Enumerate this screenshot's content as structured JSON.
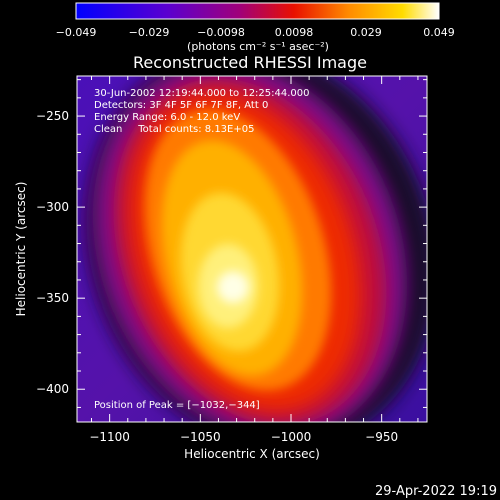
{
  "colorbar": {
    "tick_labels": [
      "−0.049",
      "−0.029",
      "−0.0098",
      "0.0098",
      "0.029",
      "0.049"
    ],
    "unit_label": "(photons cm⁻² s⁻¹ asec⁻²)",
    "range": [
      -0.049,
      0.049
    ]
  },
  "chart_data": {
    "type": "heatmap",
    "title": "Reconstructed RHESSI Image",
    "xlabel": "Heliocentric X (arcsec)",
    "ylabel": "Heliocentric Y (arcsec)",
    "xlim": [
      -1118,
      -925
    ],
    "ylim": [
      -418,
      -228
    ],
    "x_ticks": [
      -1100,
      -1050,
      -1000,
      -950
    ],
    "y_ticks": [
      -400,
      -350,
      -300,
      -250
    ],
    "x_tick_labels": [
      "−1100",
      "−1050",
      "−1000",
      "−950"
    ],
    "y_tick_labels": [
      "−400",
      "−350",
      "−300",
      "−250"
    ],
    "peak": {
      "x": -1032,
      "y": -344
    },
    "annotations": [
      "30-Jun-2002 12:19:44.000 to 12:25:44.000",
      "Detectors: 3F 4F 5F 6F 7F 8F, Att 0",
      "Energy Range: 6.0 - 12.0 keV",
      "Clean     Total counts: 8.13E+05"
    ],
    "peak_label": "Position of Peak = [−1032,−344]",
    "colormap_stops": [
      "#1f00ff",
      "#6a00c8",
      "#a0006e",
      "#e0140a",
      "#ff7800",
      "#ffc800",
      "#fffbd8"
    ]
  },
  "footer_date": "29-Apr-2022 19:19"
}
